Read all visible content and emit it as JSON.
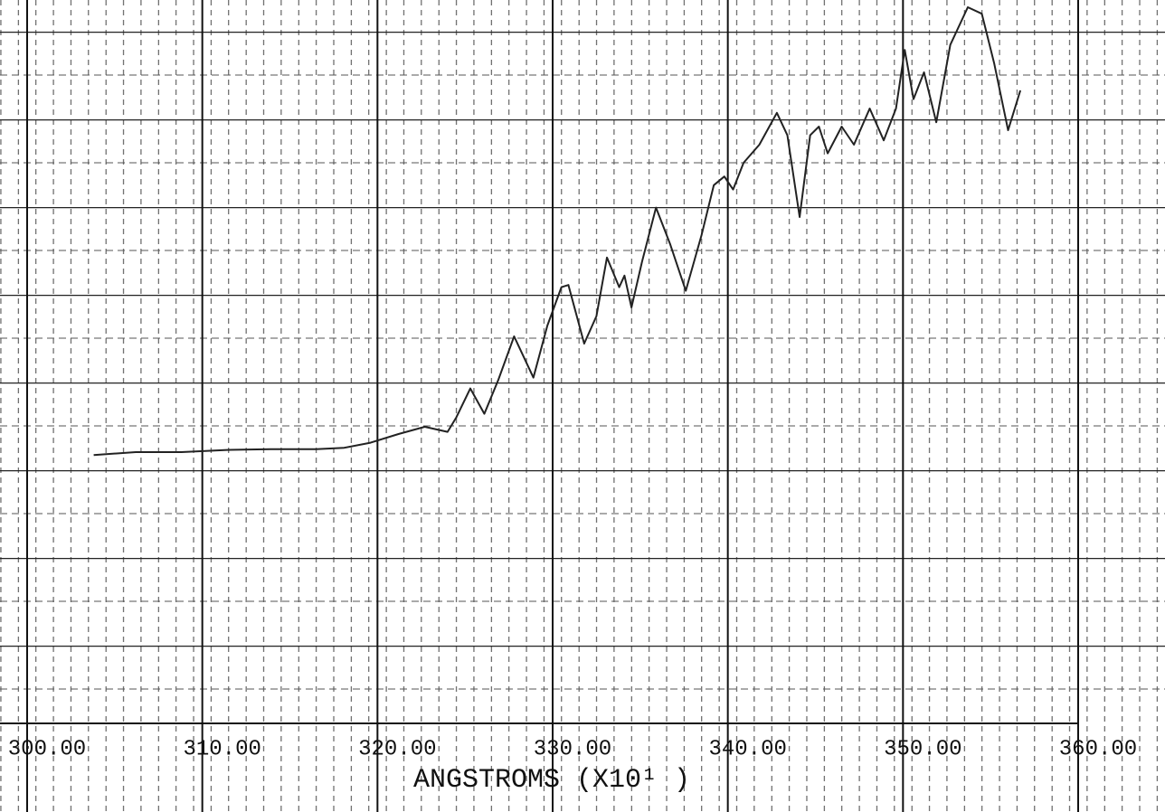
{
  "chart_data": {
    "type": "line",
    "x_label": "ANGSTROMS (X10¹ )",
    "x": [
      303.8,
      306.2,
      308.8,
      311.4,
      313.9,
      316.5,
      318.1,
      319.6,
      321.2,
      322.7,
      324.0,
      324.5,
      325.3,
      326.1,
      326.9,
      327.8,
      328.9,
      329.7,
      330.5,
      330.9,
      331.8,
      332.5,
      333.1,
      333.8,
      334.1,
      334.5,
      335.1,
      335.9,
      336.7,
      337.6,
      338.5,
      339.2,
      339.8,
      340.3,
      340.9,
      341.8,
      342.8,
      343.4,
      344.1,
      344.7,
      345.2,
      345.7,
      346.5,
      347.2,
      348.1,
      348.9,
      349.6,
      350.1,
      350.6,
      351.2,
      351.9,
      352.7,
      353.7,
      354.5,
      355.2,
      356.0,
      356.7
    ],
    "series": [
      {
        "color": "#222222",
        "values": [
          37.1,
          37.5,
          37.5,
          37.8,
          37.9,
          37.9,
          38.1,
          38.8,
          40.0,
          41.0,
          40.3,
          42.3,
          46.3,
          42.8,
          47.5,
          53.5,
          47.8,
          55.0,
          60.3,
          60.6,
          52.5,
          56.3,
          64.4,
          60.3,
          61.9,
          57.5,
          63.8,
          71.3,
          66.3,
          59.8,
          67.5,
          74.4,
          75.6,
          73.8,
          77.5,
          80.0,
          84.4,
          81.3,
          70.0,
          81.3,
          82.5,
          78.8,
          82.5,
          80.0,
          85.0,
          80.6,
          85.0,
          93.1,
          86.3,
          90.0,
          83.1,
          93.8,
          99.0,
          98.1,
          91.3,
          82.0,
          87.5
        ]
      }
    ],
    "xlim": [
      300,
      360
    ],
    "xticks": [
      {
        "value": 300,
        "label": "300.00"
      },
      {
        "value": 310,
        "label": "310.00"
      },
      {
        "value": 320,
        "label": "320.00"
      },
      {
        "value": 330,
        "label": "330.00"
      },
      {
        "value": 340,
        "label": "340.00"
      },
      {
        "value": 350,
        "label": "350.00"
      },
      {
        "value": 360,
        "label": "360.00"
      }
    ],
    "ylim": [
      0,
      100
    ],
    "grid": true
  }
}
